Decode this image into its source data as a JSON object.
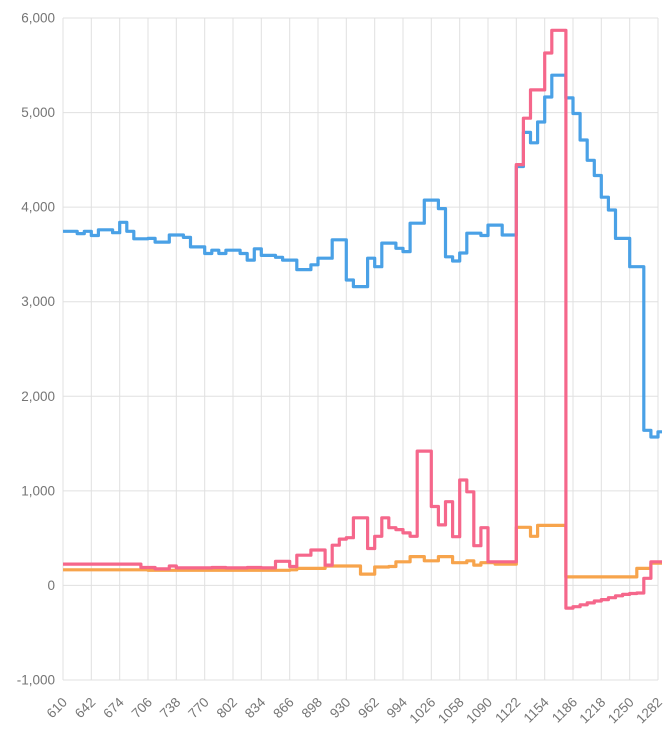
{
  "chart": {
    "background_color": "#ffffff",
    "grid_color": "#e0e0e0",
    "tick_label_color": "#757575",
    "line_width": 3.2
  },
  "chart_data": {
    "type": "line",
    "step": true,
    "title": "",
    "subtitle": "",
    "xlabel": "",
    "ylabel": "",
    "legend": "none",
    "grid": true,
    "xlim": [
      610,
      1282
    ],
    "ylim": [
      -1000,
      6000
    ],
    "x_ticks": [
      610,
      642,
      674,
      706,
      738,
      770,
      802,
      834,
      866,
      898,
      930,
      962,
      994,
      1026,
      1058,
      1090,
      1122,
      1154,
      1186,
      1218,
      1250,
      1282
    ],
    "y_ticks": [
      -1000,
      0,
      1000,
      2000,
      3000,
      4000,
      5000,
      6000
    ],
    "y_tick_labels": [
      "-1,000",
      "0",
      "1,000",
      "2,000",
      "3,000",
      "4,000",
      "5,000",
      "6,000"
    ],
    "x": [
      610,
      618,
      626,
      634,
      642,
      650,
      658,
      666,
      674,
      682,
      690,
      698,
      706,
      714,
      722,
      730,
      738,
      746,
      754,
      762,
      770,
      778,
      786,
      794,
      802,
      810,
      818,
      826,
      834,
      842,
      850,
      858,
      866,
      874,
      882,
      890,
      898,
      906,
      914,
      922,
      930,
      938,
      946,
      954,
      962,
      970,
      978,
      986,
      994,
      1002,
      1010,
      1018,
      1026,
      1034,
      1042,
      1050,
      1058,
      1066,
      1074,
      1082,
      1090,
      1098,
      1106,
      1114,
      1122,
      1130,
      1138,
      1146,
      1154,
      1162,
      1170,
      1178,
      1186,
      1194,
      1202,
      1210,
      1218,
      1226,
      1234,
      1242,
      1250,
      1258,
      1266,
      1274,
      1282
    ],
    "series": [
      {
        "name": "blue",
        "color": "#4aa1e6",
        "values": [
          3745,
          3745,
          3720,
          3745,
          3700,
          3760,
          3760,
          3730,
          3840,
          3745,
          3665,
          3665,
          3670,
          3630,
          3630,
          3705,
          3705,
          3680,
          3580,
          3580,
          3510,
          3545,
          3510,
          3545,
          3545,
          3510,
          3440,
          3560,
          3490,
          3490,
          3470,
          3440,
          3440,
          3340,
          3340,
          3390,
          3460,
          3460,
          3655,
          3655,
          3230,
          3160,
          3160,
          3460,
          3370,
          3620,
          3620,
          3565,
          3530,
          3830,
          3830,
          4075,
          4075,
          3985,
          3475,
          3430,
          3515,
          3725,
          3725,
          3700,
          3810,
          3810,
          3705,
          3705,
          4430,
          4790,
          4680,
          4900,
          5165,
          5395,
          5395,
          5155,
          4990,
          4710,
          4495,
          4335,
          4105,
          3970,
          3670,
          3670,
          3370,
          3370,
          1640,
          1570,
          1625
        ]
      },
      {
        "name": "orange",
        "color": "#f7a44c",
        "values": [
          165,
          165,
          165,
          165,
          165,
          165,
          165,
          165,
          165,
          165,
          165,
          165,
          160,
          160,
          160,
          160,
          160,
          160,
          160,
          160,
          160,
          160,
          160,
          160,
          160,
          160,
          160,
          160,
          160,
          160,
          160,
          160,
          165,
          180,
          180,
          180,
          180,
          205,
          205,
          205,
          205,
          205,
          120,
          120,
          195,
          195,
          200,
          250,
          250,
          305,
          305,
          260,
          260,
          305,
          305,
          240,
          240,
          260,
          215,
          240,
          240,
          225,
          225,
          225,
          615,
          615,
          520,
          635,
          635,
          635,
          635,
          90,
          90,
          90,
          90,
          90,
          90,
          90,
          90,
          90,
          90,
          180,
          180,
          235,
          235
        ]
      },
      {
        "name": "pink",
        "color": "#f5678b",
        "values": [
          225,
          225,
          225,
          225,
          225,
          225,
          225,
          225,
          225,
          225,
          225,
          190,
          190,
          175,
          175,
          205,
          185,
          185,
          185,
          185,
          185,
          190,
          190,
          185,
          185,
          185,
          190,
          190,
          185,
          185,
          255,
          255,
          200,
          320,
          320,
          375,
          375,
          215,
          425,
          490,
          505,
          715,
          715,
          390,
          520,
          715,
          610,
          590,
          555,
          520,
          1420,
          1420,
          835,
          640,
          885,
          515,
          1115,
          990,
          420,
          610,
          250,
          250,
          250,
          250,
          4450,
          4940,
          5240,
          5240,
          5630,
          5870,
          5870,
          -240,
          -225,
          -205,
          -185,
          -165,
          -150,
          -130,
          -110,
          -95,
          -85,
          -80,
          75,
          250,
          250
        ]
      }
    ]
  }
}
